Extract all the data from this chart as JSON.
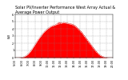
{
  "title": "Solar PV/Inverter Performance West Array Actual & Average Power Output",
  "ylabel": "kW",
  "ylim": [
    0,
    6
  ],
  "yticks": [
    0,
    1,
    2,
    3,
    4,
    5,
    6
  ],
  "background_color": "#ffffff",
  "fill_color": "#ff0000",
  "line_color": "#cc0000",
  "avg_line_color": "#ffffff",
  "grid_color": "#888888",
  "hours": [
    5.0,
    5.25,
    5.5,
    5.75,
    6.0,
    6.25,
    6.5,
    6.75,
    7.0,
    7.25,
    7.5,
    7.75,
    8.0,
    8.25,
    8.5,
    8.75,
    9.0,
    9.25,
    9.5,
    9.75,
    10.0,
    10.25,
    10.5,
    10.75,
    11.0,
    11.25,
    11.5,
    11.75,
    12.0,
    12.25,
    12.5,
    12.75,
    13.0,
    13.25,
    13.5,
    13.75,
    14.0,
    14.25,
    14.5,
    14.75,
    15.0,
    15.25,
    15.5,
    15.75,
    16.0,
    16.25,
    16.5,
    16.75,
    17.0,
    17.25,
    17.5,
    17.75,
    18.0,
    18.25,
    18.5,
    18.75,
    19.0,
    19.25,
    19.5,
    19.75,
    20.0
  ],
  "power_actual": [
    0.0,
    0.0,
    0.0,
    0.02,
    0.05,
    0.1,
    0.2,
    0.35,
    0.55,
    0.8,
    1.1,
    1.45,
    1.8,
    2.15,
    2.5,
    2.8,
    3.1,
    3.4,
    3.65,
    3.85,
    4.05,
    4.2,
    4.35,
    4.45,
    4.5,
    4.6,
    4.75,
    4.9,
    4.8,
    4.85,
    4.9,
    4.85,
    4.8,
    4.75,
    4.7,
    4.65,
    4.55,
    4.4,
    4.2,
    4.0,
    3.75,
    3.5,
    3.2,
    2.9,
    2.6,
    2.3,
    2.0,
    1.7,
    1.4,
    1.1,
    0.85,
    0.6,
    0.4,
    0.25,
    0.15,
    0.07,
    0.03,
    0.01,
    0.0,
    0.0,
    0.0
  ],
  "power_avg": [
    0.0,
    0.0,
    0.0,
    0.01,
    0.04,
    0.09,
    0.18,
    0.32,
    0.5,
    0.75,
    1.05,
    1.4,
    1.75,
    2.1,
    2.45,
    2.75,
    3.05,
    3.35,
    3.6,
    3.8,
    4.0,
    4.15,
    4.3,
    4.4,
    4.45,
    4.55,
    4.62,
    4.68,
    4.72,
    4.78,
    4.82,
    4.78,
    4.72,
    4.68,
    4.62,
    4.57,
    4.47,
    4.32,
    4.12,
    3.92,
    3.67,
    3.42,
    3.12,
    2.82,
    2.52,
    2.22,
    1.92,
    1.62,
    1.32,
    1.02,
    0.77,
    0.55,
    0.35,
    0.22,
    0.12,
    0.05,
    0.02,
    0.0,
    0.0,
    0.0,
    0.0
  ],
  "title_fontsize": 3.5,
  "tick_fontsize": 2.5,
  "label_fontsize": 2.8,
  "xlim": [
    5.0,
    20.0
  ],
  "xtick_positions": [
    5,
    6,
    7,
    8,
    9,
    10,
    11,
    12,
    13,
    14,
    15,
    16,
    17,
    18,
    19,
    20
  ]
}
